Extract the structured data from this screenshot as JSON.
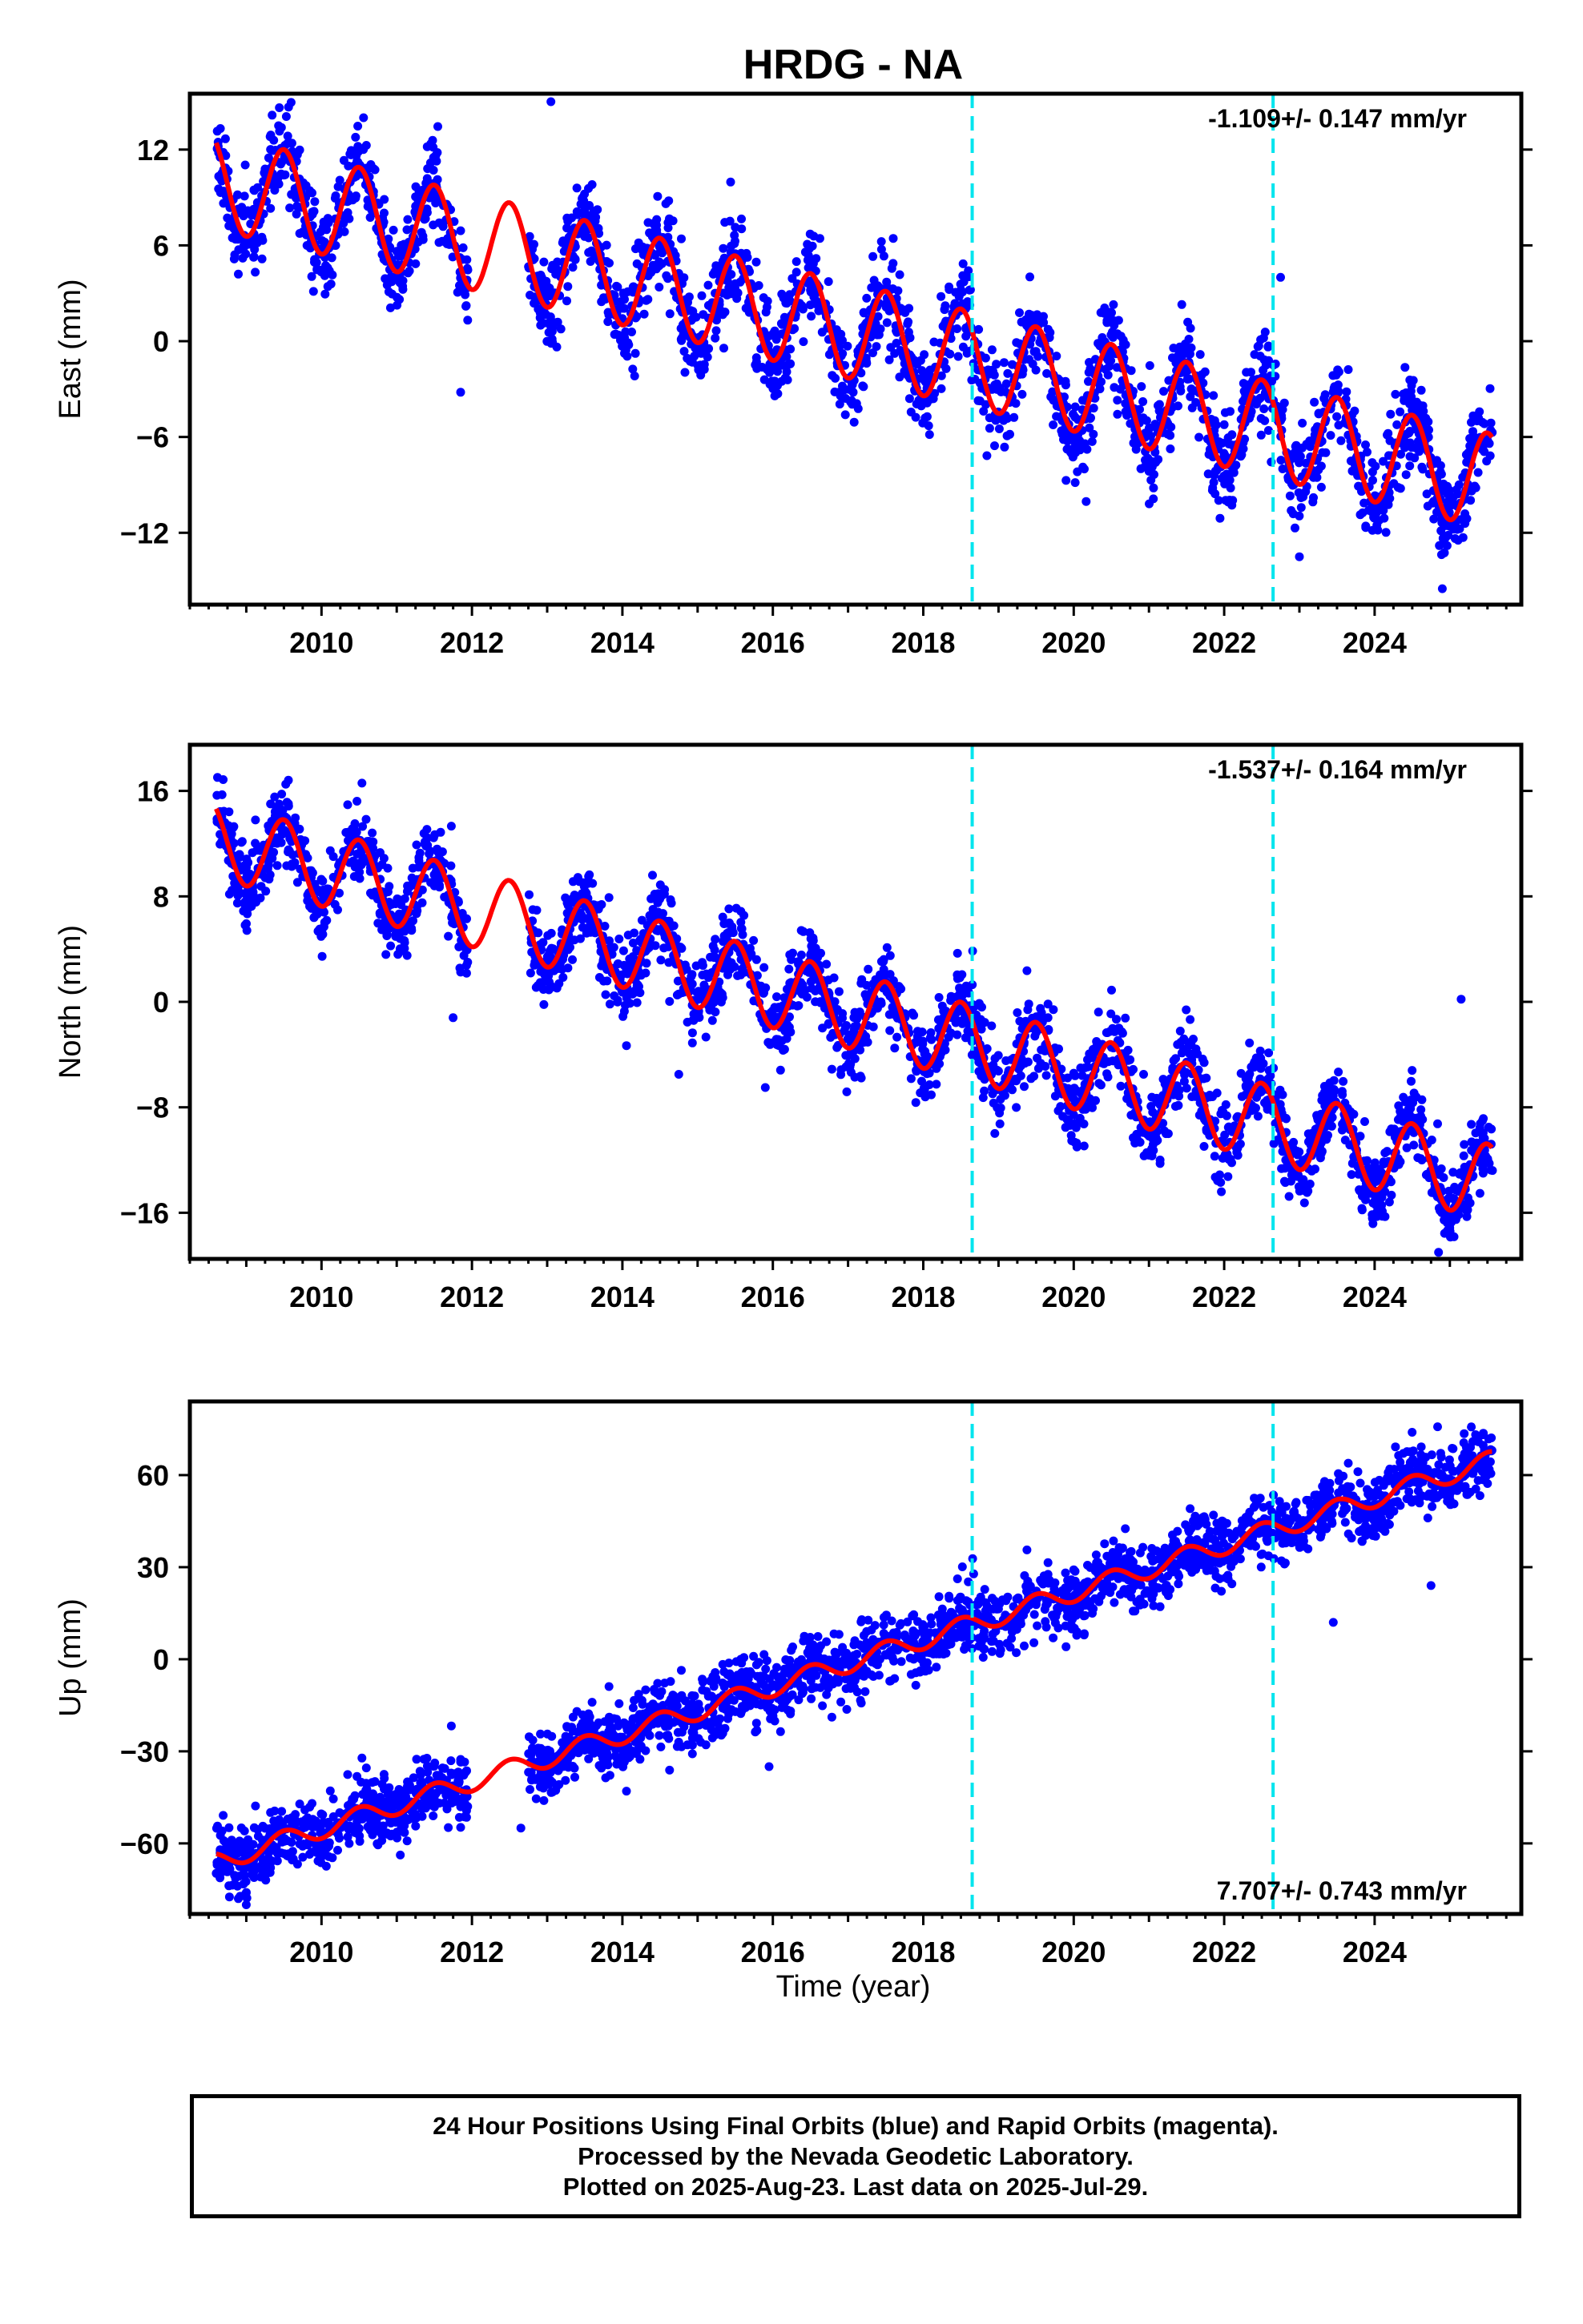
{
  "title": "HRDG - NA",
  "xlabel": "Time (year)",
  "colors": {
    "points": "#0000ff",
    "fit": "#ff0000",
    "event_lines": "#00e5ee"
  },
  "caption": [
    "24 Hour Positions Using Final Orbits (blue) and Rapid Orbits (magenta).",
    "Processed by the Nevada Geodetic Laboratory.",
    "Plotted on 2025-Aug-23. Last data on 2025-Jul-29."
  ],
  "chart_data": [
    {
      "type": "scatter",
      "component": "east",
      "ylabel": "East (mm)",
      "rate_label": "-1.109+/- 0.147 mm/yr",
      "rate_position": "top-right",
      "xlim": [
        2008.25,
        2025.95
      ],
      "ylim": [
        -16.5,
        15.5
      ],
      "xticks": [
        2010,
        2012,
        2014,
        2016,
        2018,
        2020,
        2022,
        2024
      ],
      "yticks": [
        -12,
        -6,
        0,
        6,
        12
      ],
      "event_lines": [
        2018.65,
        2022.65
      ],
      "series": [
        {
          "kind": "points",
          "x_range": [
            2008.6,
            2025.57
          ],
          "trend_start": 10.0,
          "rate": -1.109,
          "annual_amplitude": 3.1,
          "scatter_sd": 1.4
        },
        {
          "kind": "fit",
          "x_range": [
            2008.6,
            2025.57
          ],
          "trend_start": 10.0,
          "rate": -1.109,
          "annual_amplitude": 3.0
        }
      ],
      "data_gap": [
        2011.95,
        2012.75
      ],
      "outliers": [
        [
          2013.05,
          15.0
        ],
        [
          2011.85,
          -3.2
        ],
        [
          2022.75,
          4.0
        ],
        [
          2024.9,
          -15.5
        ],
        [
          2023.0,
          -13.5
        ]
      ]
    },
    {
      "type": "scatter",
      "component": "north",
      "ylabel": "North (mm)",
      "rate_label": "-1.537+/- 0.164 mm/yr",
      "rate_position": "top-right",
      "xlim": [
        2008.25,
        2025.95
      ],
      "ylim": [
        -19.5,
        19.5
      ],
      "xticks": [
        2010,
        2012,
        2014,
        2016,
        2018,
        2020,
        2022,
        2024
      ],
      "yticks": [
        -16,
        -8,
        0,
        8,
        16
      ],
      "event_lines": [
        2018.65,
        2022.65
      ],
      "series": [
        {
          "kind": "points",
          "x_range": [
            2008.6,
            2025.57
          ],
          "trend_start": 12.3,
          "rate": -1.537,
          "annual_amplitude": 3.0,
          "scatter_sd": 1.5
        },
        {
          "kind": "fit",
          "x_range": [
            2008.6,
            2025.57
          ],
          "trend_start": 12.3,
          "rate": -1.537,
          "annual_amplitude": 2.9
        }
      ],
      "data_gap": [
        2011.95,
        2012.75
      ],
      "outliers": [
        [
          2014.75,
          -5.5
        ],
        [
          2015.9,
          -6.5
        ],
        [
          2025.15,
          0.2
        ],
        [
          2024.85,
          -19.0
        ],
        [
          2011.75,
          -1.2
        ]
      ]
    },
    {
      "type": "scatter",
      "component": "up",
      "ylabel": "Up (mm)",
      "rate_label": "7.707+/- 0.743 mm/yr",
      "rate_position": "bottom-right",
      "xlim": [
        2008.25,
        2025.95
      ],
      "ylim": [
        -83,
        84
      ],
      "xticks": [
        2010,
        2012,
        2014,
        2016,
        2018,
        2020,
        2022,
        2024
      ],
      "yticks": [
        -60,
        -30,
        0,
        30,
        60
      ],
      "event_lines": [
        2018.65,
        2022.65
      ],
      "series": [
        {
          "kind": "points",
          "x_range": [
            2008.6,
            2025.57
          ],
          "trend_start": -66.0,
          "rate": 7.707,
          "annual_amplitude": 3.0,
          "scatter_sd": 5.5
        },
        {
          "kind": "fit",
          "x_range": [
            2008.6,
            2025.57
          ],
          "trend_start": -66.0,
          "rate": 7.707,
          "annual_amplitude": 3.2
        }
      ],
      "data_gap": [
        2011.95,
        2012.75
      ],
      "outliers": [
        [
          2012.65,
          -55.0
        ],
        [
          2023.45,
          12.0
        ],
        [
          2024.75,
          24.0
        ],
        [
          2009.0,
          -80.0
        ],
        [
          2015.95,
          -35.0
        ]
      ]
    }
  ]
}
